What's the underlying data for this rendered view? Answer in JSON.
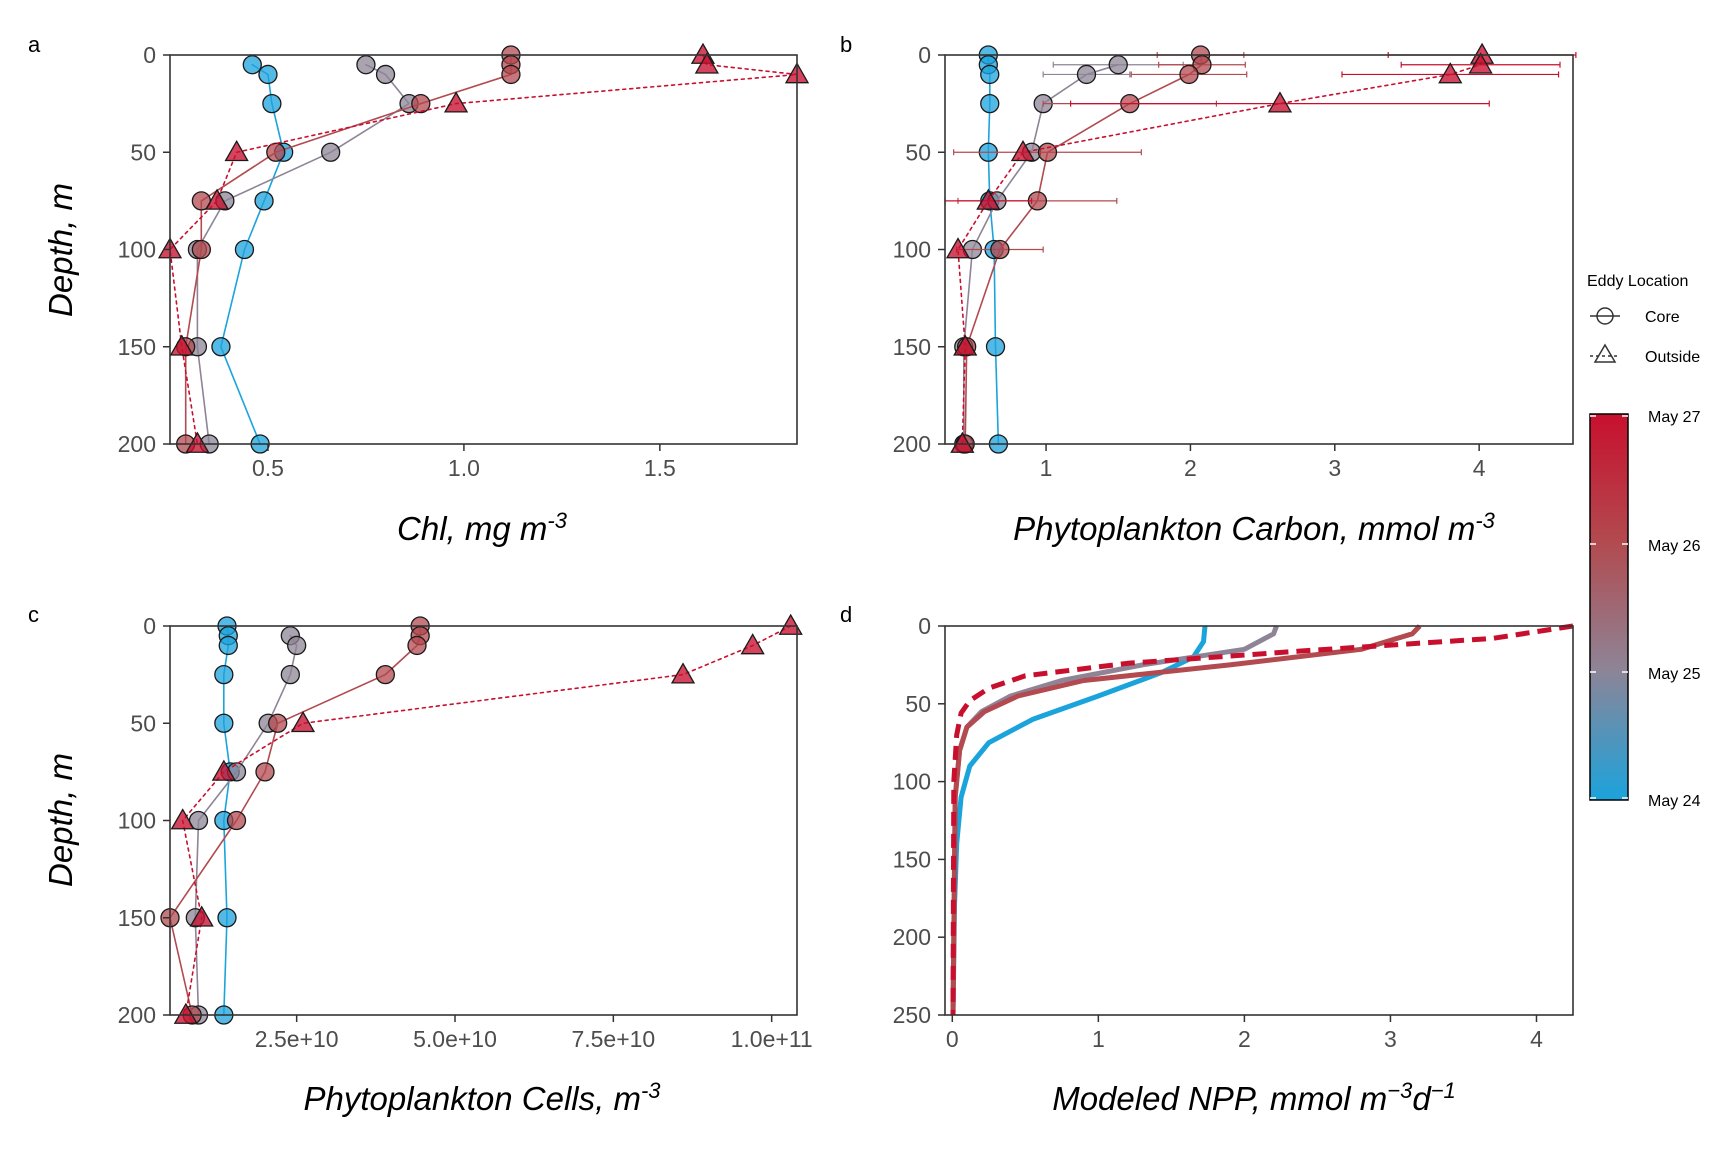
{
  "colors": {
    "core_early": "#1ba3dc",
    "mid": "#8e8496",
    "late": "#b24a4f",
    "outside": "#c8102e",
    "axis": "#333333",
    "tick_text": "#4d4d4d"
  },
  "legend": {
    "title": "Eddy Location",
    "shape_items": [
      {
        "label": "Core",
        "shape": "circle",
        "linestyle": "solid"
      },
      {
        "label": "Outside",
        "shape": "triangle",
        "linestyle": "dotted"
      }
    ],
    "colorbar_labels": [
      "May 27",
      "May 26",
      "May 25",
      "May 24"
    ],
    "colorbar_colors": [
      "#c8102e",
      "#b24a4f",
      "#8e8496",
      "#1ba3dc"
    ]
  },
  "chart_data": [
    {
      "panel": "a",
      "type": "scatter",
      "xlabel": "Chl, mg m",
      "xlabel_sup": "-3",
      "ylabel": "Depth, m",
      "xlim": [
        0.25,
        1.85
      ],
      "ylim": [
        200,
        0
      ],
      "xticks": [
        0.5,
        1.0,
        1.5
      ],
      "xtick_labels": [
        "0.5",
        "1.0",
        "1.5"
      ],
      "yticks": [
        0,
        50,
        100,
        150,
        200
      ],
      "ytick_labels": [
        "0",
        "50",
        "100",
        "150",
        "200"
      ],
      "series": [
        {
          "color": "#1ba3dc",
          "shape": "circle",
          "linestyle": "solid",
          "points": [
            [
              0.46,
              5
            ],
            [
              0.5,
              10
            ],
            [
              0.51,
              25
            ],
            [
              0.54,
              50
            ],
            [
              0.49,
              75
            ],
            [
              0.44,
              100
            ],
            [
              0.38,
              150
            ],
            [
              0.48,
              200
            ]
          ]
        },
        {
          "color": "#8e8496",
          "shape": "circle",
          "linestyle": "solid",
          "points": [
            [
              0.75,
              5
            ],
            [
              0.8,
              10
            ],
            [
              0.86,
              25
            ],
            [
              0.66,
              50
            ],
            [
              0.39,
              75
            ],
            [
              0.32,
              100
            ],
            [
              0.32,
              150
            ],
            [
              0.35,
              200
            ]
          ]
        },
        {
          "color": "#b24a4f",
          "shape": "circle",
          "linestyle": "solid",
          "points": [
            [
              1.12,
              0
            ],
            [
              1.12,
              5
            ],
            [
              1.12,
              10
            ],
            [
              0.89,
              25
            ],
            [
              0.52,
              50
            ],
            [
              0.33,
              75
            ],
            [
              0.33,
              100
            ],
            [
              0.29,
              150
            ],
            [
              0.29,
              200
            ]
          ]
        },
        {
          "color": "#c8102e",
          "shape": "triangle",
          "linestyle": "dotted",
          "points": [
            [
              1.61,
              0
            ],
            [
              1.62,
              5
            ],
            [
              1.85,
              10
            ],
            [
              0.98,
              25
            ],
            [
              0.42,
              50
            ],
            [
              0.37,
              75
            ],
            [
              0.25,
              100
            ],
            [
              0.28,
              150
            ],
            [
              0.32,
              200
            ]
          ]
        }
      ]
    },
    {
      "panel": "b",
      "type": "scatter",
      "xlabel": "Phytoplankton Carbon, mmol m",
      "xlabel_sup": "-3",
      "ylabel": "",
      "xlim": [
        0.3,
        4.65
      ],
      "ylim": [
        200,
        0
      ],
      "xticks": [
        1,
        2,
        3,
        4
      ],
      "xtick_labels": [
        "1",
        "2",
        "3",
        "4"
      ],
      "yticks": [
        0,
        50,
        100,
        150,
        200
      ],
      "ytick_labels": [
        "0",
        "50",
        "100",
        "150",
        "200"
      ],
      "series": [
        {
          "color": "#1ba3dc",
          "shape": "circle",
          "linestyle": "solid",
          "points": [
            [
              0.6,
              0
            ],
            [
              0.6,
              5
            ],
            [
              0.61,
              10
            ],
            [
              0.61,
              25
            ],
            [
              0.6,
              50
            ],
            [
              0.61,
              75
            ],
            [
              0.64,
              100
            ],
            [
              0.65,
              150
            ],
            [
              0.67,
              200
            ]
          ]
        },
        {
          "color": "#8e8496",
          "shape": "circle",
          "linestyle": "solid",
          "points": [
            [
              1.5,
              5
            ],
            [
              1.28,
              10
            ],
            [
              0.98,
              25
            ],
            [
              0.9,
              50
            ],
            [
              0.66,
              75
            ],
            [
              0.49,
              100
            ],
            [
              0.43,
              150
            ],
            [
              0.43,
              200
            ]
          ],
          "xerr": [
            0.45,
            0.3,
            0,
            0,
            0,
            0,
            0,
            0
          ]
        },
        {
          "color": "#b24a4f",
          "shape": "circle",
          "linestyle": "solid",
          "points": [
            [
              2.07,
              0
            ],
            [
              2.08,
              5
            ],
            [
              1.99,
              10
            ],
            [
              1.58,
              25
            ],
            [
              1.01,
              50
            ],
            [
              0.94,
              75
            ],
            [
              0.68,
              100
            ],
            [
              0.45,
              150
            ],
            [
              0.44,
              200
            ]
          ],
          "xerr": [
            0.3,
            0.3,
            0.4,
            0.6,
            0.65,
            0.55,
            0.3,
            0,
            0
          ]
        },
        {
          "color": "#c8102e",
          "shape": "triangle",
          "linestyle": "dotted",
          "points": [
            [
              4.02,
              0
            ],
            [
              4.01,
              5
            ],
            [
              3.8,
              10
            ],
            [
              2.62,
              25
            ],
            [
              0.84,
              50
            ],
            [
              0.6,
              75
            ],
            [
              0.39,
              100
            ],
            [
              0.44,
              150
            ],
            [
              0.42,
              200
            ]
          ],
          "xerr": [
            0.65,
            0.55,
            0.75,
            1.45,
            0,
            0.3,
            0,
            0,
            0
          ]
        }
      ]
    },
    {
      "panel": "c",
      "type": "scatter",
      "xlabel": "Phytoplankton Cells, m",
      "xlabel_sup": "-3",
      "ylabel": "Depth, m",
      "xlim": [
        5000000000.0,
        104000000000.0
      ],
      "ylim": [
        200,
        0
      ],
      "xticks": [
        25000000000.0,
        50000000000.0,
        75000000000.0,
        100000000000.0
      ],
      "xtick_labels": [
        "2.5e+10",
        "5.0e+10",
        "7.5e+10",
        "1.0e+11"
      ],
      "yticks": [
        0,
        50,
        100,
        150,
        200
      ],
      "ytick_labels": [
        "0",
        "50",
        "100",
        "150",
        "200"
      ],
      "series": [
        {
          "color": "#1ba3dc",
          "shape": "circle",
          "linestyle": "solid",
          "points": [
            [
              14000000000.0,
              0
            ],
            [
              14200000000.0,
              5
            ],
            [
              14200000000.0,
              10
            ],
            [
              13500000000.0,
              25
            ],
            [
              13500000000.0,
              50
            ],
            [
              14500000000.0,
              75
            ],
            [
              13500000000.0,
              100
            ],
            [
              14000000000.0,
              150
            ],
            [
              13500000000.0,
              200
            ]
          ]
        },
        {
          "color": "#8e8496",
          "shape": "circle",
          "linestyle": "solid",
          "points": [
            [
              24000000000.0,
              5
            ],
            [
              25000000000.0,
              10
            ],
            [
              24000000000.0,
              25
            ],
            [
              20500000000.0,
              50
            ],
            [
              15500000000.0,
              75
            ],
            [
              9500000000.0,
              100
            ],
            [
              9000000000.0,
              150
            ],
            [
              9500000000.0,
              200
            ]
          ]
        },
        {
          "color": "#b24a4f",
          "shape": "circle",
          "linestyle": "solid",
          "points": [
            [
              44500000000.0,
              0
            ],
            [
              44500000000.0,
              5
            ],
            [
              44000000000.0,
              10
            ],
            [
              39000000000.0,
              25
            ],
            [
              22000000000.0,
              50
            ],
            [
              20000000000.0,
              75
            ],
            [
              15500000000.0,
              100
            ],
            [
              5000000000.0,
              150
            ],
            [
              8500000000.0,
              200
            ]
          ]
        },
        {
          "color": "#c8102e",
          "shape": "triangle",
          "linestyle": "dotted",
          "points": [
            [
              103000000000.0,
              0
            ],
            [
              97000000000.0,
              10
            ],
            [
              86000000000.0,
              25
            ],
            [
              26000000000.0,
              50
            ],
            [
              13500000000.0,
              75
            ],
            [
              7000000000.0,
              100
            ],
            [
              10000000000.0,
              150
            ],
            [
              7500000000.0,
              200
            ]
          ]
        }
      ]
    },
    {
      "panel": "d",
      "type": "line",
      "xlabel": "Modeled NPP, mmol m",
      "xlabel_sup": "−3",
      "xlabel_tail": "d",
      "xlabel_sup2": "−1",
      "ylabel": "",
      "xlim": [
        -0.05,
        4.25
      ],
      "ylim": [
        250,
        0
      ],
      "xticks": [
        0,
        1,
        2,
        3,
        4
      ],
      "xtick_labels": [
        "0",
        "1",
        "2",
        "3",
        "4"
      ],
      "yticks": [
        0,
        50,
        100,
        150,
        200,
        250
      ],
      "ytick_labels": [
        "0",
        "50",
        "100",
        "150",
        "200",
        "250"
      ],
      "series": [
        {
          "color": "#1ba3dc",
          "linestyle": "solid",
          "points": [
            [
              1.73,
              0
            ],
            [
              1.72,
              10
            ],
            [
              1.65,
              20
            ],
            [
              1.43,
              30
            ],
            [
              1.0,
              45
            ],
            [
              0.55,
              60
            ],
            [
              0.25,
              75
            ],
            [
              0.12,
              90
            ],
            [
              0.06,
              110
            ],
            [
              0.03,
              140
            ],
            [
              0.015,
              180
            ],
            [
              0.005,
              250
            ]
          ]
        },
        {
          "color": "#8e8496",
          "linestyle": "solid",
          "points": [
            [
              2.22,
              0
            ],
            [
              2.2,
              5
            ],
            [
              2.0,
              15
            ],
            [
              1.3,
              25
            ],
            [
              0.75,
              35
            ],
            [
              0.4,
              45
            ],
            [
              0.2,
              55
            ],
            [
              0.1,
              65
            ],
            [
              0.05,
              80
            ],
            [
              0.02,
              110
            ],
            [
              0.005,
              250
            ]
          ]
        },
        {
          "color": "#b24a4f",
          "linestyle": "solid",
          "points": [
            [
              3.2,
              0
            ],
            [
              3.15,
              5
            ],
            [
              2.8,
              15
            ],
            [
              1.9,
              25
            ],
            [
              0.9,
              35
            ],
            [
              0.45,
              45
            ],
            [
              0.22,
              55
            ],
            [
              0.1,
              65
            ],
            [
              0.05,
              80
            ],
            [
              0.02,
              110
            ],
            [
              0.005,
              250
            ]
          ]
        },
        {
          "color": "#c8102e",
          "linestyle": "dashed",
          "points": [
            [
              4.25,
              0
            ],
            [
              3.7,
              8
            ],
            [
              2.4,
              16
            ],
            [
              1.2,
              24
            ],
            [
              0.5,
              32
            ],
            [
              0.25,
              40
            ],
            [
              0.12,
              48
            ],
            [
              0.06,
              56
            ],
            [
              0.03,
              70
            ],
            [
              0.01,
              100
            ],
            [
              0.005,
              250
            ]
          ]
        }
      ]
    }
  ]
}
